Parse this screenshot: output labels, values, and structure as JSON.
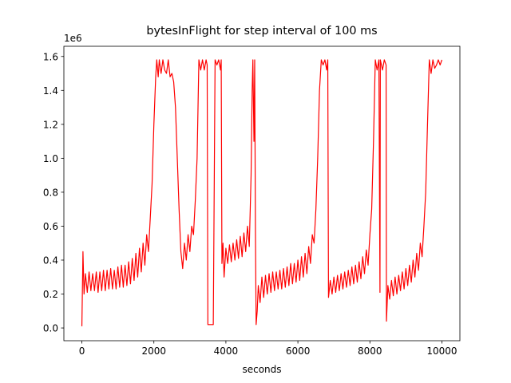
{
  "chart_data": {
    "type": "line",
    "title": "bytesInFlight for step interval of 100 ms",
    "xlabel": "seconds",
    "y_offset_label": "1e6",
    "color": "#ff0000",
    "xlim": [
      -500,
      10500
    ],
    "xticks": [
      0,
      2000,
      4000,
      6000,
      8000,
      10000
    ],
    "ylim": [
      -0.075,
      1.66
    ],
    "yticks": [
      {
        "value": 0,
        "label": "0.0"
      },
      0.2,
      0.4,
      0.6,
      0.8,
      {
        "value": 1,
        "label": "1.0"
      },
      1.2,
      1.4,
      1.6
    ],
    "x": [
      0,
      30,
      60,
      100,
      150,
      200,
      250,
      300,
      350,
      400,
      450,
      500,
      550,
      600,
      650,
      700,
      750,
      800,
      850,
      900,
      950,
      1000,
      1050,
      1100,
      1150,
      1200,
      1250,
      1300,
      1350,
      1400,
      1450,
      1500,
      1550,
      1600,
      1650,
      1700,
      1750,
      1800,
      1850,
      1900,
      1950,
      2000,
      2050,
      2080,
      2120,
      2150,
      2200,
      2250,
      2300,
      2350,
      2400,
      2450,
      2500,
      2550,
      2600,
      2650,
      2700,
      2750,
      2800,
      2850,
      2900,
      2950,
      3000,
      3050,
      3100,
      3150,
      3200,
      3250,
      3300,
      3350,
      3400,
      3450,
      3480,
      3500,
      3600,
      3650,
      3700,
      3750,
      3800,
      3850,
      3870,
      3890,
      3920,
      3950,
      4000,
      4050,
      4100,
      4150,
      4200,
      4250,
      4300,
      4350,
      4400,
      4450,
      4500,
      4550,
      4600,
      4650,
      4700,
      4730,
      4750,
      4780,
      4800,
      4820,
      4840,
      4870,
      4900,
      4950,
      5000,
      5050,
      5100,
      5150,
      5200,
      5250,
      5300,
      5350,
      5400,
      5450,
      5500,
      5550,
      5600,
      5650,
      5700,
      5750,
      5800,
      5850,
      5900,
      5950,
      6000,
      6050,
      6100,
      6150,
      6200,
      6250,
      6300,
      6350,
      6400,
      6450,
      6500,
      6550,
      6600,
      6650,
      6700,
      6750,
      6800,
      6830,
      6850,
      6900,
      6950,
      7000,
      7050,
      7100,
      7150,
      7200,
      7250,
      7300,
      7350,
      7400,
      7450,
      7500,
      7550,
      7600,
      7650,
      7700,
      7750,
      7800,
      7850,
      7900,
      7950,
      8000,
      8050,
      8100,
      8150,
      8200,
      8250,
      8280,
      8290,
      8350,
      8400,
      8450,
      8460,
      8500,
      8550,
      8600,
      8650,
      8700,
      8750,
      8800,
      8850,
      8900,
      8950,
      9000,
      9050,
      9100,
      9150,
      9200,
      9250,
      9300,
      9350,
      9400,
      9450,
      9500,
      9550,
      9600,
      9650,
      9700,
      9750,
      9800,
      9850,
      9900,
      9950,
      10000
    ],
    "values": [
      0.01,
      0.45,
      0.2,
      0.32,
      0.21,
      0.33,
      0.22,
      0.32,
      0.22,
      0.33,
      0.21,
      0.33,
      0.22,
      0.34,
      0.22,
      0.34,
      0.23,
      0.35,
      0.23,
      0.34,
      0.23,
      0.36,
      0.24,
      0.37,
      0.24,
      0.37,
      0.25,
      0.39,
      0.26,
      0.41,
      0.28,
      0.44,
      0.3,
      0.47,
      0.33,
      0.5,
      0.37,
      0.55,
      0.45,
      0.65,
      0.85,
      1.2,
      1.48,
      1.58,
      1.48,
      1.58,
      1.5,
      1.58,
      1.52,
      1.5,
      1.58,
      1.48,
      1.5,
      1.45,
      1.3,
      1.0,
      0.7,
      0.45,
      0.35,
      0.5,
      0.4,
      0.55,
      0.45,
      0.6,
      0.55,
      0.75,
      1.0,
      1.58,
      1.52,
      1.58,
      1.52,
      1.58,
      1.55,
      0.02,
      0.02,
      0.02,
      1.58,
      1.55,
      1.58,
      1.52,
      1.58,
      0.38,
      0.5,
      0.3,
      0.47,
      0.38,
      0.49,
      0.39,
      0.5,
      0.4,
      0.52,
      0.41,
      0.54,
      0.42,
      0.56,
      0.45,
      0.6,
      0.48,
      0.9,
      1.4,
      1.58,
      1.1,
      1.58,
      0.6,
      0.02,
      0.1,
      0.25,
      0.15,
      0.3,
      0.18,
      0.31,
      0.2,
      0.32,
      0.21,
      0.33,
      0.22,
      0.33,
      0.23,
      0.34,
      0.23,
      0.35,
      0.24,
      0.36,
      0.25,
      0.38,
      0.26,
      0.38,
      0.27,
      0.4,
      0.28,
      0.42,
      0.3,
      0.44,
      0.32,
      0.48,
      0.38,
      0.55,
      0.5,
      0.7,
      1.0,
      1.4,
      1.58,
      1.55,
      1.58,
      1.52,
      1.58,
      0.18,
      0.28,
      0.2,
      0.3,
      0.21,
      0.31,
      0.22,
      0.32,
      0.23,
      0.33,
      0.24,
      0.34,
      0.25,
      0.36,
      0.26,
      0.37,
      0.27,
      0.39,
      0.29,
      0.42,
      0.32,
      0.46,
      0.37,
      0.55,
      0.7,
      1.1,
      1.58,
      1.52,
      1.58,
      0.21,
      1.58,
      1.52,
      1.58,
      1.55,
      0.04,
      0.25,
      0.17,
      0.28,
      0.19,
      0.3,
      0.2,
      0.31,
      0.22,
      0.33,
      0.23,
      0.35,
      0.25,
      0.37,
      0.27,
      0.4,
      0.3,
      0.44,
      0.34,
      0.5,
      0.42,
      0.6,
      0.8,
      1.2,
      1.58,
      1.5,
      1.58,
      1.53,
      1.55,
      1.58,
      1.55,
      1.58
    ]
  }
}
